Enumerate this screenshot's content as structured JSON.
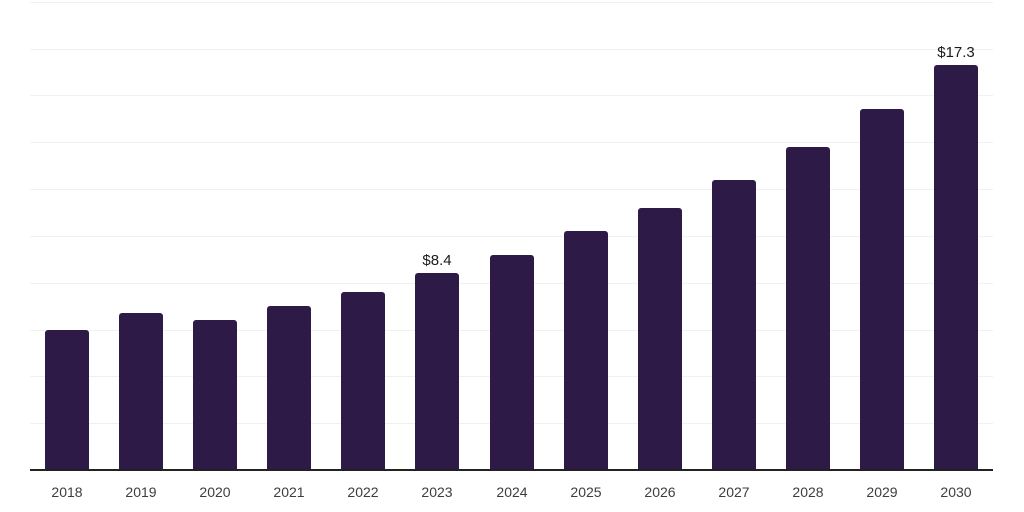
{
  "chart_data": {
    "type": "bar",
    "title": "",
    "xlabel": "",
    "ylabel": "",
    "categories": [
      "2018",
      "2019",
      "2020",
      "2021",
      "2022",
      "2023",
      "2024",
      "2025",
      "2026",
      "2027",
      "2028",
      "2029",
      "2030"
    ],
    "values": [
      6.0,
      6.7,
      6.4,
      7.0,
      7.6,
      8.4,
      9.2,
      10.2,
      11.2,
      12.4,
      13.8,
      15.4,
      17.3
    ],
    "shown_labels": [
      "",
      "",
      "",
      "",
      "",
      "$8.4",
      "",
      "",
      "",
      "",
      "",
      "",
      "$17.3"
    ],
    "value_prefix": "$",
    "ylim": [
      0,
      20
    ],
    "gridline_step": 2,
    "grid": true,
    "legend": "none",
    "colors": {
      "bar": "#2e1a46",
      "gridline": "#f0f0f2",
      "axis": "#222222",
      "tick_label": "#3d3d3d",
      "data_label": "#1a1a1a"
    }
  }
}
